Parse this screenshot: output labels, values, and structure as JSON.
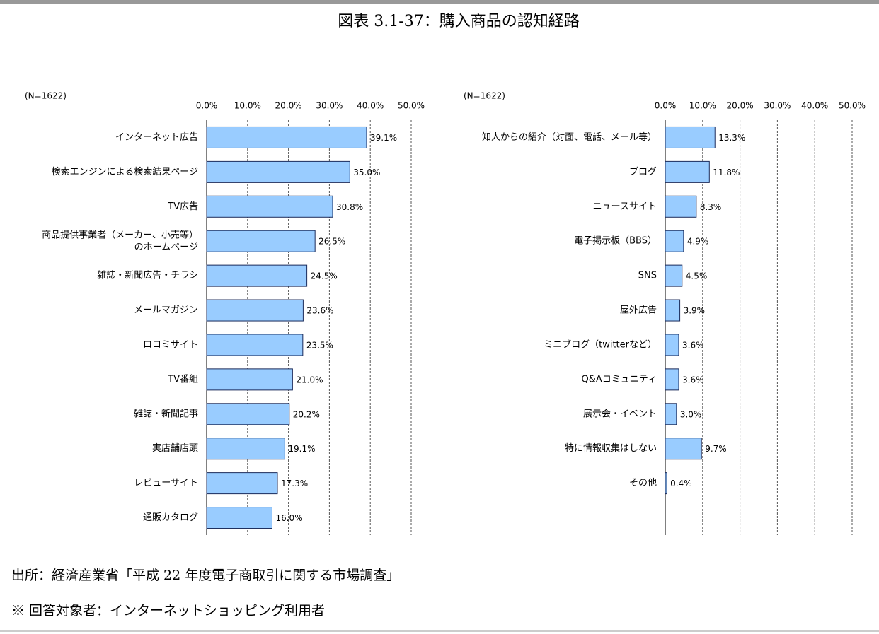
{
  "title": "図表 3.1-37：購入商品の認知経路",
  "source": "出所：経済産業省「平成 22 年度電子商取引に関する市場調査」",
  "note": "※ 回答対象者：インターネットショッピング利用者",
  "chart_data": [
    {
      "type": "barh",
      "annotation": "(N=1622)",
      "color": "#99ccff",
      "grid": true,
      "categories": [
        "インターネット広告",
        "検索エンジンによる検索結果ページ",
        "TV広告",
        "商品提供事業者（メーカー、小売等）\nのホームページ",
        "雑誌・新聞広告・チラシ",
        "メールマガジン",
        "ロコミサイト",
        "TV番組",
        "雑誌・新聞記事",
        "実店舗店頭",
        "レビューサイト",
        "通販カタログ"
      ],
      "values": [
        39.1,
        35.0,
        30.8,
        26.5,
        24.5,
        23.6,
        23.5,
        21.0,
        20.2,
        19.1,
        17.3,
        16.0
      ],
      "value_labels": [
        "39.1%",
        "35.0%",
        "30.8%",
        "26.5%",
        "24.5%",
        "23.6%",
        "23.5%",
        "21.0%",
        "20.2%",
        "19.1%",
        "17.3%",
        "16.0%"
      ],
      "xlim": [
        0,
        50
      ],
      "xticks": [
        {
          "value": 0,
          "label": "0.0%"
        },
        {
          "value": 10,
          "label": "10.0%"
        },
        {
          "value": 20,
          "label": "20.0%"
        },
        {
          "value": 30,
          "label": "30.0%"
        },
        {
          "value": 40,
          "label": "40.0%"
        },
        {
          "value": 50,
          "label": "50.0%"
        }
      ]
    },
    {
      "type": "barh",
      "annotation": "(N=1622)",
      "color": "#99ccff",
      "grid": true,
      "categories": [
        "知人からの紹介（対面、電話、メール等）",
        "ブログ",
        "ニュースサイト",
        "電子掲示板（BBS）",
        "SNS",
        "屋外広告",
        "ミニブログ（twitterなど）",
        "Q&Aコミュニティ",
        "展示会・イベント",
        "特に情報収集はしない",
        "その他"
      ],
      "values": [
        13.3,
        11.8,
        8.3,
        4.9,
        4.5,
        3.9,
        3.6,
        3.6,
        3.0,
        9.7,
        0.4
      ],
      "value_labels": [
        "13.3%",
        "11.8%",
        "8.3%",
        "4.9%",
        "4.5%",
        "3.9%",
        "3.6%",
        "3.6%",
        "3.0%",
        "9.7%",
        "0.4%"
      ],
      "xlim": [
        0,
        50
      ],
      "xticks": [
        {
          "value": 0,
          "label": "0.0%"
        },
        {
          "value": 10,
          "label": "10.0%"
        },
        {
          "value": 20,
          "label": "20.0%"
        },
        {
          "value": 30,
          "label": "30.0%"
        },
        {
          "value": 40,
          "label": "40.0%"
        },
        {
          "value": 50,
          "label": "50.0%"
        }
      ]
    }
  ]
}
